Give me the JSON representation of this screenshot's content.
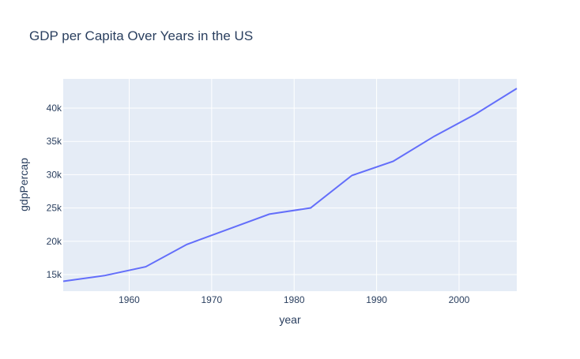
{
  "chart_data": {
    "type": "line",
    "title": "GDP per Capita Over Years in the US",
    "xlabel": "year",
    "ylabel": "gdpPercap",
    "x": [
      1952,
      1957,
      1962,
      1967,
      1972,
      1977,
      1982,
      1987,
      1992,
      1997,
      2002,
      2007
    ],
    "series": [
      {
        "name": "gdpPercap",
        "values": [
          13990.48,
          14847.13,
          16173.15,
          19530.37,
          21806.04,
          24072.63,
          25009.56,
          29884.35,
          32003.93,
          35767.43,
          39097.1,
          42951.65
        ]
      }
    ],
    "xlim": [
      1952,
      2007
    ],
    "ylim": [
      12512,
      44384
    ],
    "xticks": [
      1960,
      1970,
      1980,
      1990,
      2000
    ],
    "xtick_labels": [
      "1960",
      "1970",
      "1980",
      "1990",
      "2000"
    ],
    "yticks": [
      15000,
      20000,
      25000,
      30000,
      35000,
      40000
    ],
    "ytick_labels": [
      "15k",
      "20k",
      "25k",
      "30k",
      "35k",
      "40k"
    ],
    "grid": true,
    "colors": {
      "line": "#636efa",
      "plot_bg": "#e5ecf6",
      "grid": "#ffffff",
      "text": "#2a3f5f"
    }
  }
}
